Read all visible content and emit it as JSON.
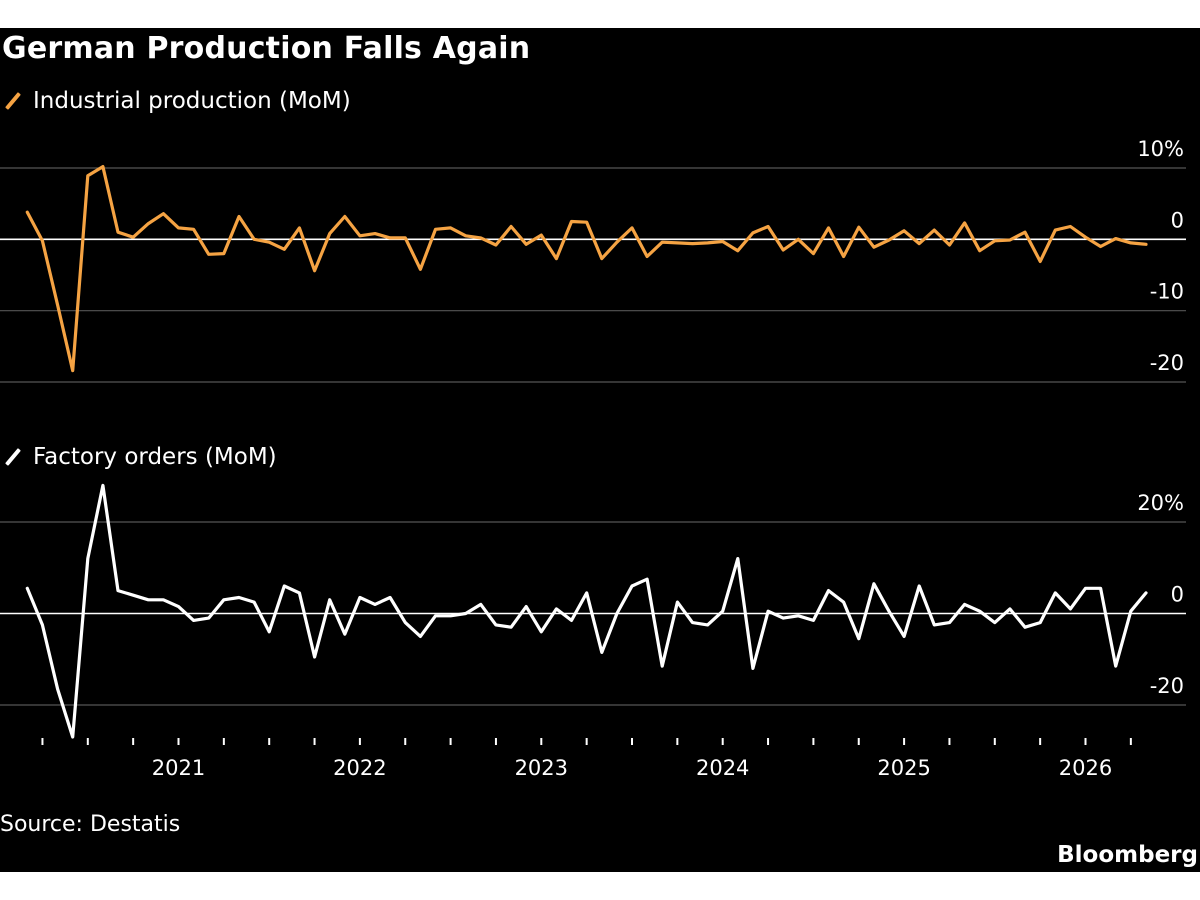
{
  "title": "German Production Falls Again",
  "source": "Source: Destatis",
  "brand": "Bloomberg",
  "colors": {
    "background": "#000000",
    "production": "#f5a343",
    "orders": "#ffffff",
    "grid": "#555555"
  },
  "chart_data": [
    {
      "type": "line",
      "series": [
        {
          "name": "Industrial production (MoM)",
          "x_start": "2020-03",
          "values": [
            3.8,
            -0.2,
            -9.2,
            -18.4,
            8.9,
            10.2,
            1.0,
            0.3,
            2.2,
            3.6,
            1.6,
            1.4,
            -2.1,
            -2.0,
            3.2,
            0.0,
            -0.4,
            -1.4,
            1.6,
            -4.4,
            0.8,
            3.2,
            0.5,
            0.8,
            0.2,
            0.2,
            -4.2,
            1.4,
            1.6,
            0.5,
            0.2,
            -0.8,
            1.8,
            -0.7,
            0.6,
            -2.7,
            2.5,
            2.4,
            -2.7,
            -0.4,
            1.6,
            -2.4,
            -0.4,
            -0.5,
            -0.6,
            -0.5,
            -0.3,
            -1.6,
            0.9,
            1.8,
            -1.5,
            0.0,
            -2.0,
            1.6,
            -2.4,
            1.7,
            -1.1,
            -0.1,
            1.2,
            -0.6,
            1.3,
            -0.8,
            2.3,
            -1.6,
            -0.2,
            -0.1,
            1.0,
            -3.1,
            1.3,
            1.8,
            0.3,
            -1.0,
            0.1,
            -0.5,
            -0.7
          ]
        }
      ],
      "y_ticks": [
        10,
        0,
        -10,
        -20
      ],
      "y_unit": "%",
      "ylim": [
        -20,
        10
      ]
    },
    {
      "type": "line",
      "series": [
        {
          "name": "Factory orders (MoM)",
          "x_start": "2020-03",
          "values": [
            5.5,
            -2.5,
            -16.5,
            -27.0,
            12.0,
            28.0,
            5.0,
            4.0,
            3.0,
            3.0,
            1.5,
            -1.5,
            -1.0,
            3.0,
            3.5,
            2.5,
            -4.0,
            6.0,
            4.5,
            -9.5,
            3.0,
            -4.5,
            3.5,
            2.0,
            3.5,
            -2.0,
            -5.0,
            -0.5,
            -0.5,
            0.0,
            2.0,
            -2.5,
            -3.0,
            1.5,
            -4.0,
            1.0,
            -1.5,
            4.5,
            -8.5,
            0.0,
            6.0,
            7.5,
            -11.5,
            2.5,
            -2.0,
            -2.5,
            0.5,
            12.0,
            -12.0,
            0.5,
            -1.0,
            -0.5,
            -1.5,
            5.0,
            2.5,
            -5.5,
            6.5,
            0.5,
            -5.0,
            6.0,
            -2.5,
            -2.0,
            2.0,
            0.5,
            -2.0,
            1.0,
            -3.0,
            -2.0,
            4.5,
            1.0,
            5.5,
            5.5,
            -11.5,
            0.5,
            4.5
          ]
        }
      ],
      "y_ticks": [
        20,
        0,
        -20
      ],
      "y_unit": "%",
      "ylim": [
        -27,
        28
      ]
    }
  ],
  "x_axis": {
    "year_labels": [
      "2021",
      "2022",
      "2023",
      "2024",
      "2025",
      "2026"
    ],
    "quarter_ticks": [
      "2020-04",
      "2020-07",
      "2020-10",
      "2021-01",
      "2021-04",
      "2021-07",
      "2021-10",
      "2022-01",
      "2022-04",
      "2022-07",
      "2022-10",
      "2023-01",
      "2023-04",
      "2023-07",
      "2023-10",
      "2024-01",
      "2024-04",
      "2024-07",
      "2024-10",
      "2025-01",
      "2025-04",
      "2025-07",
      "2025-10",
      "2026-01",
      "2026-04"
    ]
  }
}
